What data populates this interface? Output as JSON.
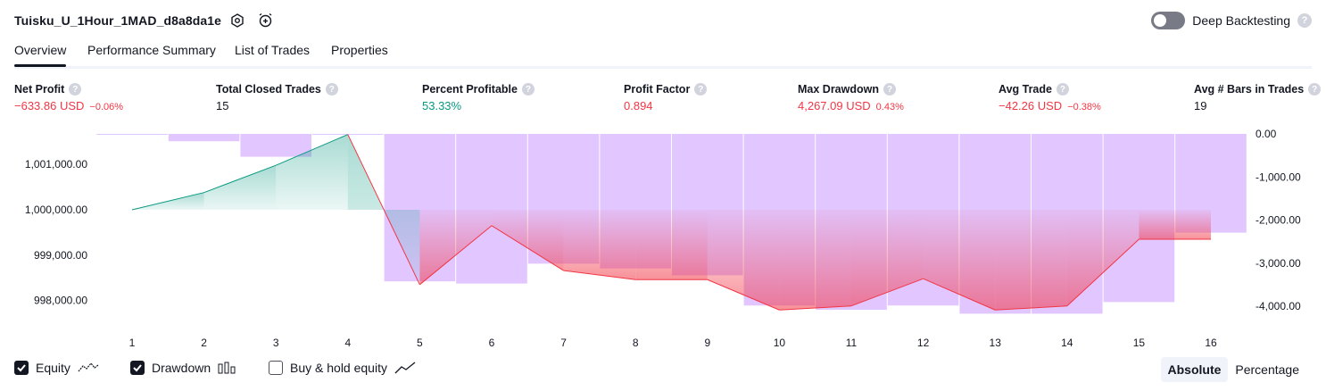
{
  "header": {
    "title": "Tuisku_U_1Hour_1MAD_d8a8da1e",
    "deep_backtesting_label": "Deep Backtesting",
    "help_glyph": "?"
  },
  "tabs": [
    {
      "label": "Overview",
      "active": true
    },
    {
      "label": "Performance Summary",
      "active": false
    },
    {
      "label": "List of Trades",
      "active": false
    },
    {
      "label": "Properties",
      "active": false
    }
  ],
  "metrics": [
    {
      "label": "Net Profit",
      "value": "−633.86 USD",
      "pct": "−0.06%",
      "color": "#f23645"
    },
    {
      "label": "Total Closed Trades",
      "value": "15",
      "pct": "",
      "color": "#131722"
    },
    {
      "label": "Percent Profitable",
      "value": "53.33%",
      "pct": "",
      "color": "#089981"
    },
    {
      "label": "Profit Factor",
      "value": "0.894",
      "pct": "",
      "color": "#f23645"
    },
    {
      "label": "Max Drawdown",
      "value": "4,267.09 USD",
      "pct": "0.43%",
      "color": "#f23645"
    },
    {
      "label": "Avg Trade",
      "value": "−42.26 USD",
      "pct": "−0.38%",
      "color": "#f23645"
    },
    {
      "label": "Avg # Bars in Trades",
      "value": "19",
      "pct": "",
      "color": "#131722"
    }
  ],
  "legend": {
    "equity": {
      "label": "Equity",
      "checked": true
    },
    "drawdown": {
      "label": "Drawdown",
      "checked": true
    },
    "buy_hold": {
      "label": "Buy & hold equity",
      "checked": false
    }
  },
  "view_toggle": {
    "absolute": "Absolute",
    "percentage": "Percentage",
    "selected": "Absolute"
  },
  "chart_data": {
    "type": "line",
    "x": [
      1,
      2,
      3,
      4,
      5,
      6,
      7,
      8,
      9,
      10,
      11,
      12,
      13,
      14,
      15,
      16
    ],
    "series": [
      {
        "name": "Equity",
        "color": "#089981",
        "values": [
          1000000,
          1000380,
          1000980,
          1001660,
          998350,
          999650,
          998660,
          998460,
          998460,
          997790,
          997880,
          998480,
          997790,
          997880,
          999350,
          999350
        ]
      },
      {
        "name": "Drawdown",
        "color": "#b388ff",
        "type": "bar",
        "values": [
          0,
          -170,
          -530,
          0,
          -3420,
          -3470,
          -3010,
          -3120,
          -3280,
          -3980,
          -4080,
          -3980,
          -4170,
          -4170,
          -3900,
          -2290
        ]
      }
    ],
    "left_axis": {
      "ticks": [
        "1,001,000.00",
        "1,000,000.00",
        "999,000.00",
        "998,000.00"
      ],
      "tick_values": [
        1001000,
        1000000,
        999000,
        998000
      ]
    },
    "right_axis": {
      "ticks": [
        "0.00",
        "-1,000.00",
        "-2,000.00",
        "-3,000.00",
        "-4,000.00"
      ],
      "tick_values": [
        0,
        -1000,
        -2000,
        -3000,
        -4000
      ]
    },
    "x_tick_labels": [
      "1",
      "2",
      "3",
      "4",
      "5",
      "6",
      "7",
      "8",
      "9",
      "10",
      "11",
      "12",
      "13",
      "14",
      "15",
      "16"
    ]
  }
}
